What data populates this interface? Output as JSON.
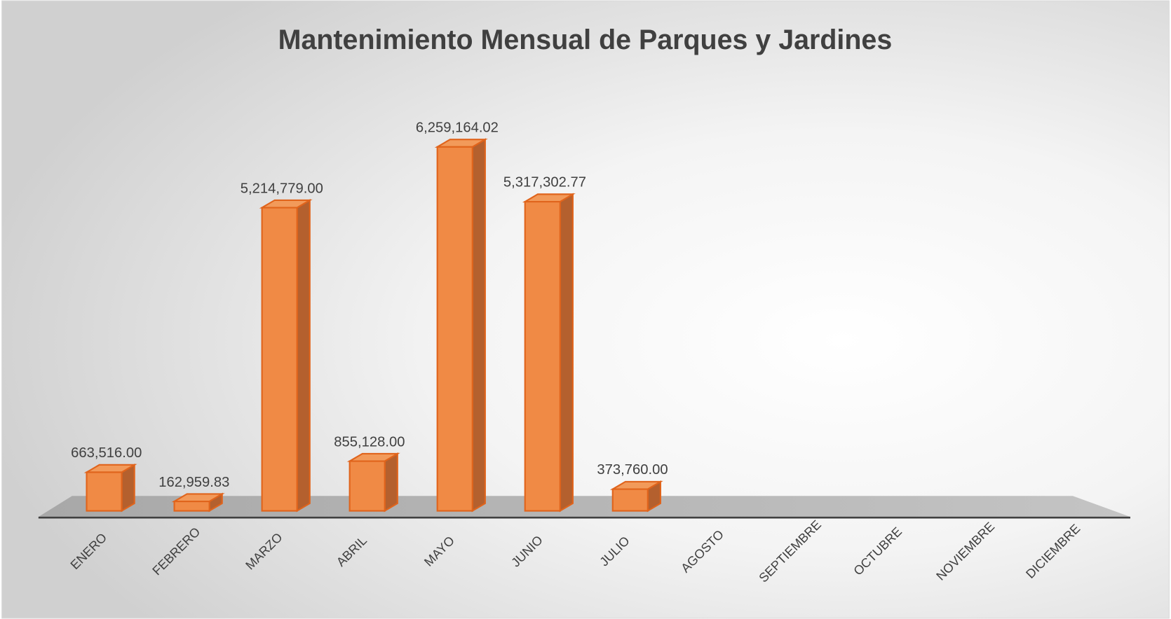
{
  "chart_data": {
    "type": "bar3d",
    "title": "Mantenimiento Mensual de Parques y Jardines",
    "categories": [
      "ENERO",
      "FEBRERO",
      "MARZO",
      "ABRIL",
      "MAYO",
      "JUNIO",
      "JULIO",
      "AGOSTO",
      "SEPTIEMBRE",
      "OCTUBRE",
      "NOVIEMBRE",
      "DICIEMBRE"
    ],
    "values": [
      663516.0,
      162959.83,
      5214779.0,
      855128.0,
      6259164.02,
      5317302.77,
      373760.0,
      null,
      null,
      null,
      null,
      null
    ],
    "value_labels": [
      "663,516.00",
      "162,959.83",
      "5,214,779.00",
      "855,128.00",
      "6,259,164.02",
      "5,317,302.77",
      "373,760.00",
      null,
      null,
      null,
      null,
      null
    ],
    "color": "#f08a45"
  }
}
